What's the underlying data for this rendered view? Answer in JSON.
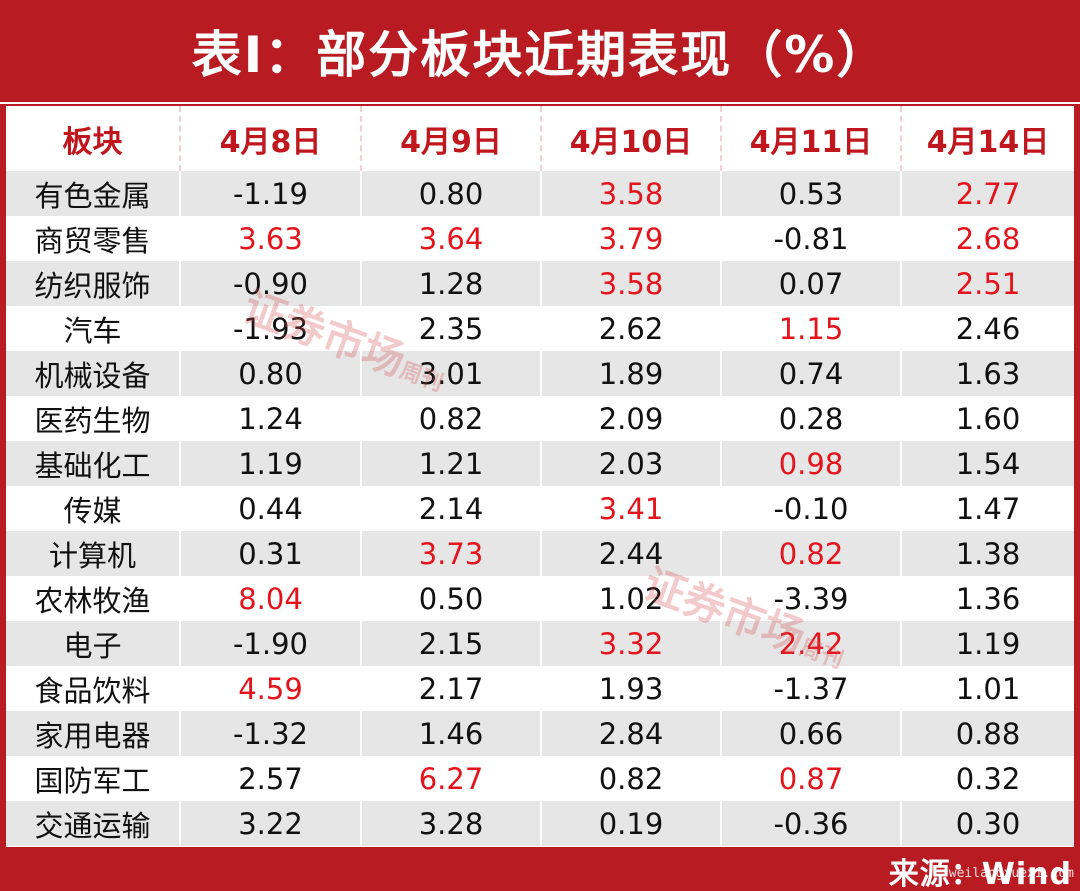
{
  "title": "表I：部分板块近期表现（%）",
  "columns": [
    "板块",
    "4月8日",
    "4月9日",
    "4月10日",
    "4月11日",
    "4月14日"
  ],
  "rows": [
    {
      "name": "有色金属",
      "values": [
        "-1.19",
        "0.80",
        "3.58",
        "0.53",
        "2.77"
      ],
      "highlight": [
        false,
        false,
        true,
        false,
        true
      ]
    },
    {
      "name": "商贸零售",
      "values": [
        "3.63",
        "3.64",
        "3.79",
        "-0.81",
        "2.68"
      ],
      "highlight": [
        true,
        true,
        true,
        false,
        true
      ]
    },
    {
      "name": "纺织服饰",
      "values": [
        "-0.90",
        "1.28",
        "3.58",
        "0.07",
        "2.51"
      ],
      "highlight": [
        false,
        false,
        true,
        false,
        true
      ]
    },
    {
      "name": "汽车",
      "values": [
        "-1.93",
        "2.35",
        "2.62",
        "1.15",
        "2.46"
      ],
      "highlight": [
        false,
        false,
        false,
        true,
        false
      ]
    },
    {
      "name": "机械设备",
      "values": [
        "0.80",
        "3.01",
        "1.89",
        "0.74",
        "1.63"
      ],
      "highlight": [
        false,
        false,
        false,
        false,
        false
      ]
    },
    {
      "name": "医药生物",
      "values": [
        "1.24",
        "0.82",
        "2.09",
        "0.28",
        "1.60"
      ],
      "highlight": [
        false,
        false,
        false,
        false,
        false
      ]
    },
    {
      "name": "基础化工",
      "values": [
        "1.19",
        "1.21",
        "2.03",
        "0.98",
        "1.54"
      ],
      "highlight": [
        false,
        false,
        false,
        true,
        false
      ]
    },
    {
      "name": "传媒",
      "values": [
        "0.44",
        "2.14",
        "3.41",
        "-0.10",
        "1.47"
      ],
      "highlight": [
        false,
        false,
        true,
        false,
        false
      ]
    },
    {
      "name": "计算机",
      "values": [
        "0.31",
        "3.73",
        "2.44",
        "0.82",
        "1.38"
      ],
      "highlight": [
        false,
        true,
        false,
        true,
        false
      ]
    },
    {
      "name": "农林牧渔",
      "values": [
        "8.04",
        "0.50",
        "1.02",
        "-3.39",
        "1.36"
      ],
      "highlight": [
        true,
        false,
        false,
        false,
        false
      ]
    },
    {
      "name": "电子",
      "values": [
        "-1.90",
        "2.15",
        "3.32",
        "2.42",
        "1.19"
      ],
      "highlight": [
        false,
        false,
        true,
        true,
        false
      ]
    },
    {
      "name": "食品饮料",
      "values": [
        "4.59",
        "2.17",
        "1.93",
        "-1.37",
        "1.01"
      ],
      "highlight": [
        true,
        false,
        false,
        false,
        false
      ]
    },
    {
      "name": "家用电器",
      "values": [
        "-1.32",
        "1.46",
        "2.84",
        "0.66",
        "0.88"
      ],
      "highlight": [
        false,
        false,
        false,
        false,
        false
      ]
    },
    {
      "name": "国防军工",
      "values": [
        "2.57",
        "6.27",
        "0.82",
        "0.87",
        "0.32"
      ],
      "highlight": [
        false,
        true,
        false,
        true,
        false
      ]
    },
    {
      "name": "交通运输",
      "values": [
        "3.22",
        "3.28",
        "0.19",
        "-0.36",
        "0.30"
      ],
      "highlight": [
        false,
        false,
        false,
        false,
        false
      ]
    }
  ],
  "source": "来源：Wind",
  "watermark": {
    "main": "证券市场",
    "sub": "周刊"
  },
  "site_mark": "weilangxuexi.com",
  "colors": {
    "brand": "#b81c22",
    "highlight": "#e3141b",
    "stripe": "#e6e6e6"
  }
}
